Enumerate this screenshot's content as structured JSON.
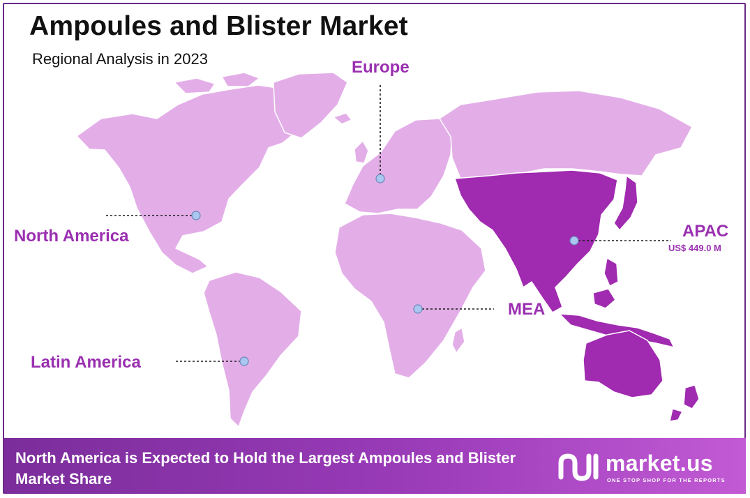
{
  "header": {
    "title": "Ampoules and Blister Market",
    "subtitle": "Regional Analysis in 2023"
  },
  "regions": [
    {
      "id": "north-america",
      "label": "North America",
      "value": ""
    },
    {
      "id": "europe",
      "label": "Europe",
      "value": ""
    },
    {
      "id": "apac",
      "label": "APAC",
      "value": "US$ 449.0 M"
    },
    {
      "id": "mea",
      "label": "MEA",
      "value": ""
    },
    {
      "id": "latin-america",
      "label": "Latin America",
      "value": ""
    }
  ],
  "highlighted_region": "APAC",
  "colors": {
    "land": "#e3aee8",
    "highlight": "#a02ab0",
    "label": "#9a2fb0",
    "marker": "#a9c7f0",
    "footer_start": "#7b2d9b",
    "footer_end": "#c25ad4"
  },
  "footer": {
    "text": "North America is Expected to Hold the Largest Ampoules and Blister Market Share"
  },
  "brand": {
    "name": "market.us",
    "tagline": "ONE STOP SHOP FOR THE REPORTS",
    "icon": "market-us-logo-icon"
  }
}
